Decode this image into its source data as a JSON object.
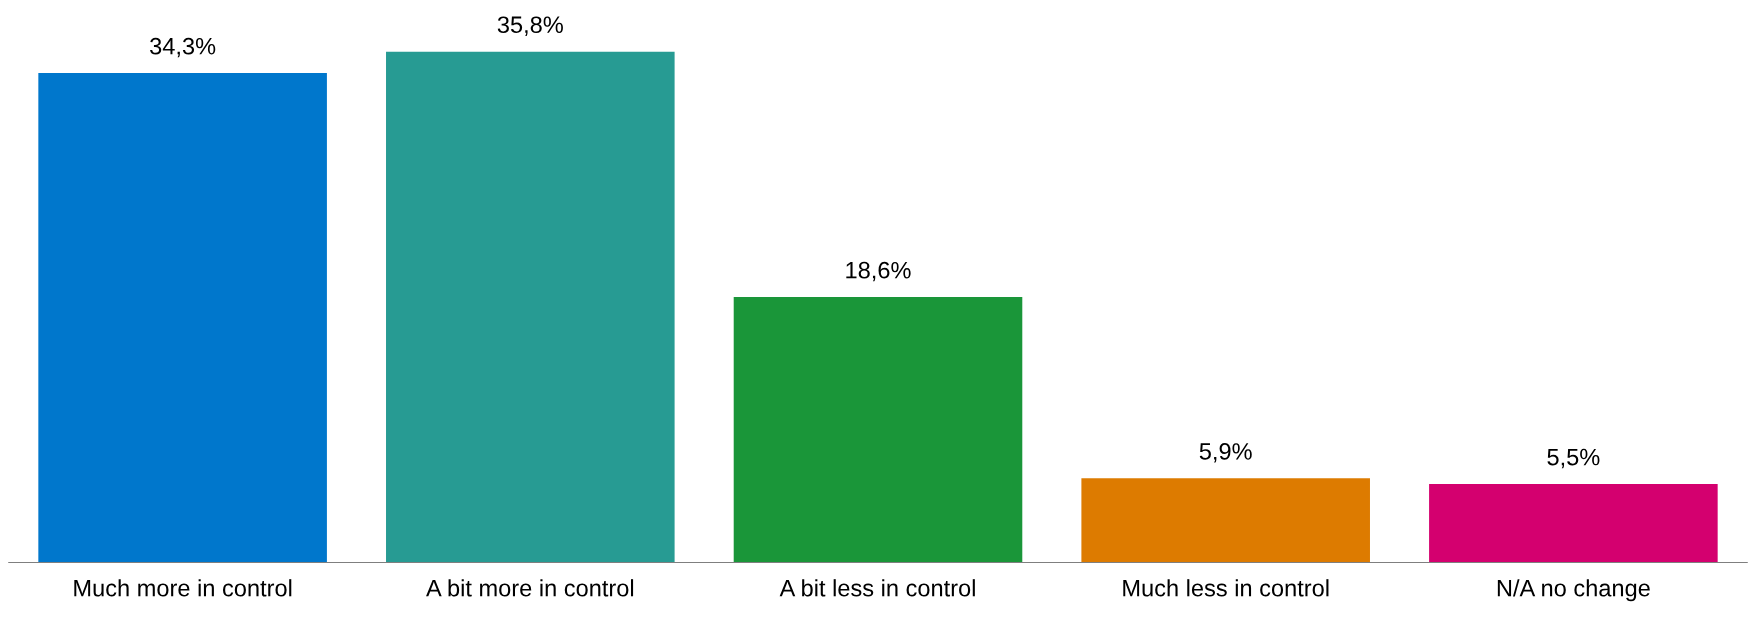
{
  "chart_data": {
    "type": "bar",
    "categories": [
      "Much more in control",
      "A bit more in control",
      "A bit less in control",
      "Much less in control",
      "N/A no change"
    ],
    "values": [
      34.3,
      35.8,
      18.6,
      5.9,
      5.5
    ],
    "colors": [
      "#0077cc",
      "#279b93",
      "#1a9639",
      "#dd7b00",
      "#d4006f"
    ],
    "value_labels": [
      "34,3%",
      "35,8%",
      "18,6%",
      "5,9%",
      "5,5%"
    ],
    "tick_labels": "x",
    "grid": false
  }
}
